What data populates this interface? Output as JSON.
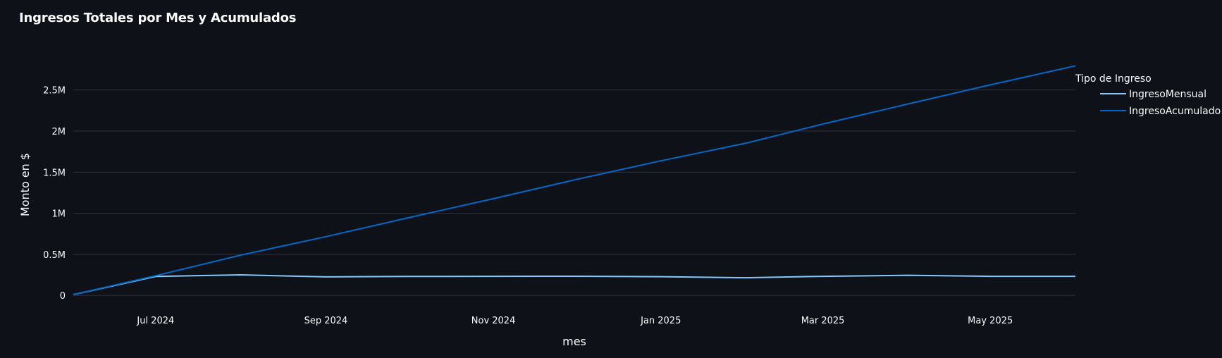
{
  "chart_data": {
    "type": "line",
    "title": "Ingresos Totales por Mes y Acumulados",
    "xlabel": "mes",
    "ylabel": "Monto en $",
    "x": [
      "2024-06-01",
      "2024-07-01",
      "2024-08-01",
      "2024-09-01",
      "2024-10-01",
      "2024-11-01",
      "2024-12-01",
      "2025-01-01",
      "2025-02-01",
      "2025-03-01",
      "2025-04-01",
      "2025-05-01",
      "2025-06-01"
    ],
    "x_ticks": [
      {
        "date": "2024-07-01",
        "label": "Jul 2024"
      },
      {
        "date": "2024-09-01",
        "label": "Sep 2024"
      },
      {
        "date": "2024-11-01",
        "label": "Nov 2024"
      },
      {
        "date": "2025-01-01",
        "label": "Jan 2025"
      },
      {
        "date": "2025-03-01",
        "label": "Mar 2025"
      },
      {
        "date": "2025-05-01",
        "label": "May 2025"
      }
    ],
    "y_ticks": [
      {
        "value": 0,
        "label": "0"
      },
      {
        "value": 500000,
        "label": "0.5M"
      },
      {
        "value": 1000000,
        "label": "1M"
      },
      {
        "value": 1500000,
        "label": "1.5M"
      },
      {
        "value": 2000000,
        "label": "2M"
      },
      {
        "value": 2500000,
        "label": "2.5M"
      }
    ],
    "ylim": [
      -50000,
      2780000
    ],
    "grid": "horizontal",
    "legend": {
      "title": "Tipo de Ingreso",
      "placement": "right"
    },
    "series": [
      {
        "name": "IngresoMensual",
        "color": "#83c9ff",
        "values": [
          10000,
          230000,
          250000,
          225000,
          230000,
          232000,
          233000,
          228000,
          215000,
          232000,
          245000,
          232000,
          232000
        ]
      },
      {
        "name": "IngresoAcumulado",
        "color": "#0068c9",
        "values": [
          10000,
          240000,
          490000,
          715000,
          945000,
          1177000,
          1410000,
          1638000,
          1853000,
          2085000,
          2330000,
          2562000,
          2794000
        ]
      }
    ]
  }
}
